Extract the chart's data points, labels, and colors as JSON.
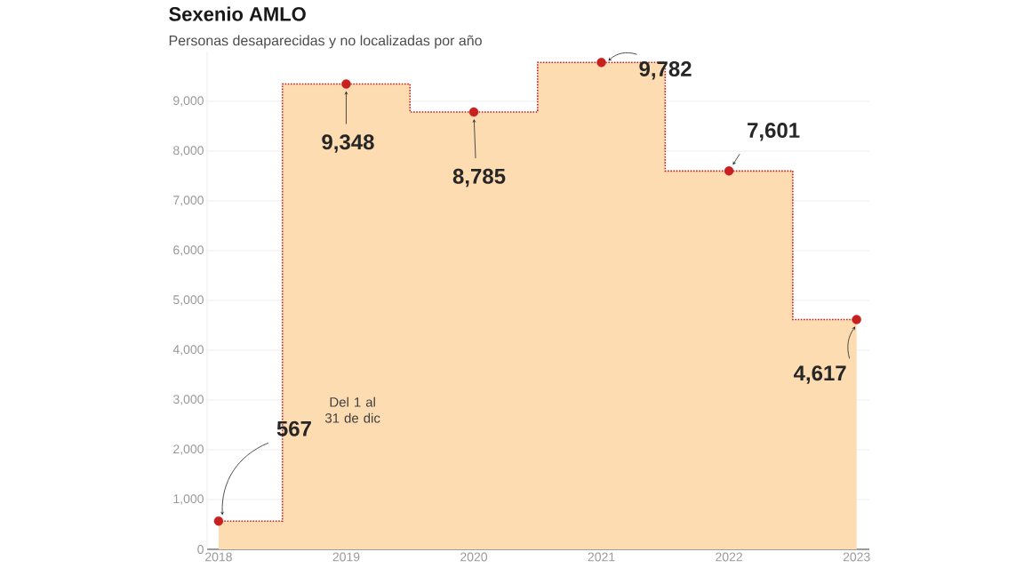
{
  "chart_data": {
    "type": "step",
    "title": "Sexenio AMLO",
    "subtitle": "Personas desaparecidas y no localizadas por año",
    "categories": [
      "2018",
      "2019",
      "2020",
      "2021",
      "2022",
      "2023"
    ],
    "series": [
      {
        "type": "area",
        "values": [
          567,
          9348,
          8785,
          9782,
          7601,
          4617
        ],
        "color": "#fddcb1"
      },
      {
        "values": [
          567,
          9348,
          8785,
          9782,
          7601,
          4617
        ],
        "color": "#c8201f",
        "marker": "circle",
        "value_labels": [
          "567",
          "9,348",
          "8,785",
          "9,782",
          "7,601",
          "4,617"
        ]
      }
    ],
    "yticks": [
      0,
      {
        "value": 1000,
        "label": "1,000"
      },
      {
        "value": 2000,
        "label": "2,000"
      },
      {
        "value": 3000,
        "label": "3,000"
      },
      {
        "value": 4000,
        "label": "4,000"
      },
      {
        "value": 5000,
        "label": "5,000"
      },
      {
        "value": 6000,
        "label": "6,000"
      },
      {
        "value": 7000,
        "label": "7,000"
      },
      {
        "value": 8000,
        "label": "8,000"
      },
      {
        "value": 9000,
        "label": "9,000"
      }
    ],
    "ylim": [
      0,
      10000
    ],
    "grid": "y",
    "line_style": "dotted",
    "annotations": [
      "Del 1 al 31 de dic"
    ]
  }
}
